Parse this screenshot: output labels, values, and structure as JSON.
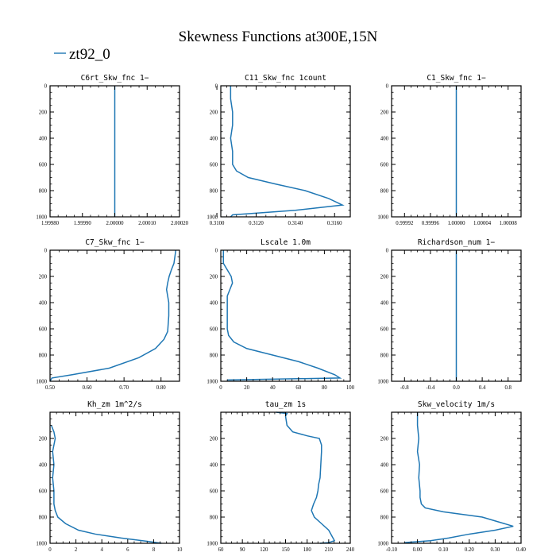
{
  "figure": {
    "title": "Skewness Functions at300E,15N",
    "legend": {
      "label": "zt92_0",
      "color": "#1f77b4"
    }
  },
  "chart_data": [
    {
      "type": "line",
      "title": "C6rt_Skw_fnc   1−",
      "xlim": [
        1.9998,
        2.0002
      ],
      "ylim": [
        0,
        1000
      ],
      "y_inverted": true,
      "xticks": [
        1.9998,
        1.9999,
        2.0,
        2.0001,
        2.0002
      ],
      "xtick_labels": [
        "1.99980",
        "1.99990",
        "2.00000",
        "2.00010",
        "2.00020"
      ],
      "yticks": [
        0,
        200,
        400,
        600,
        800,
        1000
      ],
      "ytick_labels": [
        "0",
        "200",
        "400",
        "600",
        "800",
        "1000"
      ],
      "series": [
        {
          "x": [
            2.0,
            2.0
          ],
          "y": [
            0,
            1000
          ]
        }
      ]
    },
    {
      "type": "line",
      "title": "C11_Skw_fnc   1count",
      "xlim": [
        0.3102,
        0.3168
      ],
      "ylim": [
        0,
        1000
      ],
      "y_inverted": true,
      "xticks": [
        0.31,
        0.312,
        0.314,
        0.316
      ],
      "xtick_labels": [
        "0.3100",
        "0.3120",
        "0.3140",
        "0.3160"
      ],
      "yticks": [
        0,
        200,
        400,
        600,
        800,
        1000
      ],
      "ytick_labels": [
        "0",
        "200",
        "400",
        "600",
        "800",
        "1000"
      ],
      "series": [
        {
          "x": [
            0.3107,
            0.3107,
            0.3108,
            0.3108,
            0.3107,
            0.3108,
            0.3108,
            0.311,
            0.3116,
            0.313,
            0.3145,
            0.3157,
            0.3164,
            0.314,
            0.3108,
            0.3107
          ],
          "y": [
            0,
            100,
            200,
            300,
            400,
            500,
            600,
            650,
            700,
            750,
            800,
            860,
            910,
            950,
            985,
            1000
          ]
        }
      ]
    },
    {
      "type": "line",
      "title": "C1_Skw_fnc   1−",
      "xlim": [
        0.9999,
        1.0001
      ],
      "ylim": [
        0,
        1000
      ],
      "y_inverted": true,
      "xticks": [
        0.99992,
        0.99996,
        1.0,
        1.00004,
        1.00008
      ],
      "xtick_labels": [
        "0.99992",
        "0.99996",
        "1.00000",
        "1.00004",
        "1.00008"
      ],
      "yticks": [
        0,
        200,
        400,
        600,
        800,
        1000
      ],
      "ytick_labels": [
        "0",
        "200",
        "400",
        "600",
        "800",
        "1000"
      ],
      "series": [
        {
          "x": [
            1.0,
            1.0
          ],
          "y": [
            0,
            1000
          ]
        }
      ]
    },
    {
      "type": "line",
      "title": "C7_Skw_fnc   1−",
      "xlim": [
        0.5,
        0.85
      ],
      "ylim": [
        0,
        1000
      ],
      "y_inverted": true,
      "xticks": [
        0.5,
        0.6,
        0.7,
        0.8
      ],
      "xtick_labels": [
        "0.50",
        "0.60",
        "0.70",
        "0.80"
      ],
      "yticks": [
        0,
        200,
        400,
        600,
        800,
        1000
      ],
      "ytick_labels": [
        "0",
        "200",
        "400",
        "600",
        "800",
        "1000"
      ],
      "series": [
        {
          "x": [
            0.84,
            0.835,
            0.828,
            0.822,
            0.818,
            0.815,
            0.818,
            0.821,
            0.821,
            0.818,
            0.808,
            0.785,
            0.74,
            0.66,
            0.56,
            0.505,
            0.5
          ],
          "y": [
            0,
            100,
            150,
            200,
            250,
            300,
            350,
            400,
            500,
            620,
            680,
            750,
            820,
            900,
            950,
            975,
            1000
          ]
        }
      ]
    },
    {
      "type": "line",
      "title": "Lscale   1.0m",
      "xlim": [
        0,
        100
      ],
      "ylim": [
        0,
        1000
      ],
      "y_inverted": true,
      "xticks": [
        0,
        20,
        40,
        60,
        80,
        100
      ],
      "xtick_labels": [
        "0",
        "20",
        "40",
        "60",
        "80",
        "100"
      ],
      "yticks": [
        0,
        200,
        400,
        600,
        800,
        1000
      ],
      "ytick_labels": [
        "0",
        "200",
        "400",
        "600",
        "800",
        "1000"
      ],
      "series": [
        {
          "x": [
            2,
            2,
            5,
            8,
            9,
            7,
            5,
            5,
            5,
            6,
            10,
            20,
            40,
            60,
            75,
            88,
            92,
            5
          ],
          "y": [
            0,
            100,
            150,
            200,
            250,
            300,
            350,
            450,
            600,
            650,
            700,
            750,
            800,
            850,
            900,
            950,
            975,
            990
          ]
        }
      ]
    },
    {
      "type": "line",
      "title": "Richardson_num   1−",
      "xlim": [
        -1.0,
        1.0
      ],
      "ylim": [
        0,
        1000
      ],
      "y_inverted": true,
      "xticks": [
        -0.8,
        -0.4,
        0.0,
        0.4,
        0.8
      ],
      "xtick_labels": [
        "-0.8",
        "-0.4",
        "0.0",
        "0.4",
        "0.8"
      ],
      "yticks": [
        0,
        200,
        400,
        600,
        800,
        1000
      ],
      "ytick_labels": [
        "0",
        "200",
        "400",
        "600",
        "800",
        "1000"
      ],
      "series": [
        {
          "x": [
            0.0,
            0.0
          ],
          "y": [
            0,
            1000
          ]
        }
      ]
    },
    {
      "type": "line",
      "title": "Kh_zm   1m^2/s",
      "xlim": [
        0,
        10
      ],
      "ylim": [
        0,
        1000
      ],
      "y_inverted": true,
      "xticks": [
        0,
        2,
        4,
        6,
        8,
        10
      ],
      "xtick_labels": [
        "0",
        "2",
        "4",
        "6",
        "8",
        "10"
      ],
      "yticks": [
        200,
        400,
        600,
        800,
        1000
      ],
      "ytick_labels": [
        "200",
        "400",
        "600",
        "800",
        "1000"
      ],
      "series": [
        {
          "x": [
            0.1,
            0.3,
            0.4,
            0.2,
            0.3,
            0.2,
            0.3,
            0.3,
            0.4,
            0.6,
            1.2,
            2.2,
            3.5,
            5.5,
            7.5,
            8.6
          ],
          "y": [
            100,
            150,
            200,
            300,
            400,
            500,
            600,
            700,
            750,
            800,
            850,
            900,
            930,
            960,
            985,
            1000
          ]
        }
      ]
    },
    {
      "type": "line",
      "title": "tau_zm   1s",
      "xlim": [
        60,
        240
      ],
      "ylim": [
        0,
        1000
      ],
      "y_inverted": true,
      "xticks": [
        60,
        90,
        120,
        150,
        180,
        210,
        240
      ],
      "xtick_labels": [
        "60",
        "90",
        "120",
        "150",
        "180",
        "210",
        "240"
      ],
      "yticks": [
        200,
        400,
        600,
        800,
        1000
      ],
      "ytick_labels": [
        "200",
        "400",
        "600",
        "800",
        "1000"
      ],
      "series": [
        {
          "x": [
            137,
            152,
            150,
            152,
            160,
            180,
            197,
            200,
            200,
            199,
            198,
            196,
            195,
            193,
            189,
            186,
            190,
            200,
            210,
            215,
            218,
            210,
            198
          ],
          "y": [
            0,
            10,
            30,
            100,
            150,
            180,
            200,
            250,
            300,
            400,
            500,
            550,
            600,
            650,
            700,
            750,
            800,
            850,
            900,
            950,
            980,
            995,
            1000
          ]
        }
      ]
    },
    {
      "type": "line",
      "title": "Skw_velocity   1m/s",
      "xlim": [
        -0.1,
        0.4
      ],
      "ylim": [
        0,
        1000
      ],
      "y_inverted": true,
      "xticks": [
        -0.1,
        0.0,
        0.1,
        0.2,
        0.3,
        0.4
      ],
      "xtick_labels": [
        "-0.10",
        "0.00",
        "0.10",
        "0.20",
        "0.30",
        "0.40"
      ],
      "yticks": [
        200,
        400,
        600,
        800,
        1000
      ],
      "ytick_labels": [
        "200",
        "400",
        "600",
        "800",
        "1000"
      ],
      "series": [
        {
          "x": [
            0.0,
            0.0,
            0.005,
            0.0,
            0.008,
            0.005,
            0.01,
            0.01,
            0.015,
            0.03,
            0.1,
            0.25,
            0.37,
            0.3,
            0.2,
            0.12,
            0.05,
            -0.05
          ],
          "y": [
            0,
            100,
            200,
            300,
            400,
            500,
            600,
            650,
            700,
            730,
            760,
            800,
            870,
            900,
            930,
            960,
            980,
            995
          ]
        }
      ]
    }
  ]
}
